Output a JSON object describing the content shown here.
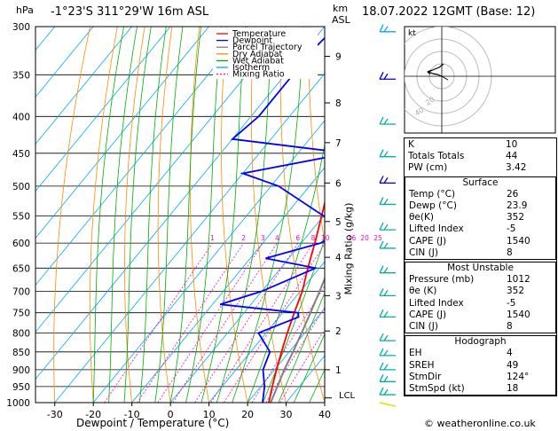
{
  "header": {
    "location": "-1°23'S 311°29'W 16m ASL",
    "datetime": "18.07.2022 12GMT (Base: 12)",
    "hpa_label": "hPa",
    "km_label": "km",
    "asl_label": "ASL"
  },
  "axes": {
    "xlabel": "Dewpoint / Temperature (°C)",
    "mixing_label": "Mixing Ratio (g/kg)",
    "lcl_label": "LCL"
  },
  "legend": [
    "Temperature",
    "Dewpoint",
    "Parcel Trajectory",
    "Dry Adiabat",
    "Wet Adiabat",
    "Isotherm",
    "Mixing Ratio"
  ],
  "legend_colors": [
    "#ff0000",
    "#0000ff",
    "#808080",
    "#ff8c00",
    "#00b000",
    "#00aaff",
    "#ff00cc"
  ],
  "hodograph": {
    "unit": "kt",
    "ring_labels": [
      "40",
      "20"
    ]
  },
  "indices": {
    "top": [
      {
        "label": "K",
        "value": "10"
      },
      {
        "label": "Totals Totals",
        "value": "44"
      },
      {
        "label": "PW (cm)",
        "value": "3.42"
      }
    ],
    "surface": {
      "title": "Surface",
      "rows": [
        {
          "label": "Temp (°C)",
          "value": "26"
        },
        {
          "label": "Dewp (°C)",
          "value": "23.9"
        },
        {
          "label": "θe(K)",
          "value": "352"
        },
        {
          "label": "Lifted Index",
          "value": "-5"
        },
        {
          "label": "CAPE (J)",
          "value": "1540"
        },
        {
          "label": "CIN (J)",
          "value": "8"
        }
      ]
    },
    "most_unstable": {
      "title": "Most Unstable",
      "rows": [
        {
          "label": "Pressure (mb)",
          "value": "1012"
        },
        {
          "label": "θe (K)",
          "value": "352"
        },
        {
          "label": "Lifted Index",
          "value": "-5"
        },
        {
          "label": "CAPE (J)",
          "value": "1540"
        },
        {
          "label": "CIN (J)",
          "value": "8"
        }
      ]
    },
    "hodograph_stats": {
      "title": "Hodograph",
      "rows": [
        {
          "label": "EH",
          "value": "4"
        },
        {
          "label": "SREH",
          "value": "49"
        },
        {
          "label": "StmDir",
          "value": "124°"
        },
        {
          "label": "StmSpd (kt)",
          "value": "18"
        }
      ]
    }
  },
  "footer": {
    "copyright": "© weatheronline.co.uk"
  },
  "chart_data": {
    "type": "line",
    "title": "-1°23'S 311°29'W 16m ASL",
    "xlabel": "Dewpoint / Temperature (°C)",
    "ylabel": "hPa",
    "xlim": [
      -35,
      40
    ],
    "ylim": [
      1000,
      300
    ],
    "pressure_ticks": [
      300,
      350,
      400,
      450,
      500,
      550,
      600,
      650,
      700,
      750,
      800,
      850,
      900,
      950,
      1000
    ],
    "temp_ticks": [
      -30,
      -20,
      -10,
      0,
      10,
      20,
      30,
      40
    ],
    "km_ticks": [
      {
        "km": "1",
        "p": 900
      },
      {
        "km": "2",
        "p": 795
      },
      {
        "km": "3",
        "p": 710
      },
      {
        "km": "4",
        "p": 628
      },
      {
        "km": "5",
        "p": 560
      },
      {
        "km": "6",
        "p": 495
      },
      {
        "km": "7",
        "p": 435
      },
      {
        "km": "8",
        "p": 383
      },
      {
        "km": "9",
        "p": 330
      }
    ],
    "mixing_ratio_labels": [
      "1",
      "2",
      "3",
      "4",
      "6",
      "8",
      "10",
      "16",
      "20",
      "25"
    ],
    "series": [
      {
        "name": "Temperature",
        "color": "#ff0000",
        "points": [
          [
            1000,
            25.5
          ],
          [
            950,
            23
          ],
          [
            900,
            20.5
          ],
          [
            850,
            18
          ],
          [
            800,
            15.5
          ],
          [
            750,
            13
          ],
          [
            700,
            10.5
          ],
          [
            650,
            7
          ],
          [
            600,
            3.5
          ],
          [
            550,
            -0.5
          ],
          [
            500,
            -5
          ],
          [
            450,
            -10.5
          ],
          [
            420,
            -13
          ],
          [
            400,
            -17
          ],
          [
            350,
            -24
          ],
          [
            300,
            -32
          ]
        ]
      },
      {
        "name": "Dewpoint",
        "color": "#0000ff",
        "points": [
          [
            1000,
            23.9
          ],
          [
            950,
            21
          ],
          [
            900,
            17
          ],
          [
            850,
            15
          ],
          [
            800,
            8
          ],
          [
            760,
            15
          ],
          [
            750,
            14
          ],
          [
            730,
            -8
          ],
          [
            700,
            0
          ],
          [
            650,
            9
          ],
          [
            630,
            -6
          ],
          [
            600,
            5
          ],
          [
            580,
            7
          ],
          [
            550,
            0
          ],
          [
            500,
            -18
          ],
          [
            480,
            -30
          ],
          [
            450,
            -7
          ],
          [
            430,
            -40
          ],
          [
            400,
            -38
          ],
          [
            350,
            -38
          ],
          [
            320,
            -38
          ],
          [
            300,
            -37
          ]
        ]
      },
      {
        "name": "Parcel Trajectory",
        "color": "#808080",
        "points": [
          [
            1000,
            26
          ],
          [
            940,
            24
          ],
          [
            900,
            22.5
          ],
          [
            850,
            21
          ],
          [
            800,
            19.2
          ],
          [
            750,
            17.2
          ],
          [
            700,
            15
          ],
          [
            650,
            12.5
          ],
          [
            600,
            10
          ],
          [
            550,
            7.5
          ],
          [
            500,
            4.5
          ],
          [
            450,
            1
          ],
          [
            400,
            -3
          ],
          [
            350,
            -8
          ],
          [
            300,
            -14
          ]
        ]
      }
    ]
  }
}
